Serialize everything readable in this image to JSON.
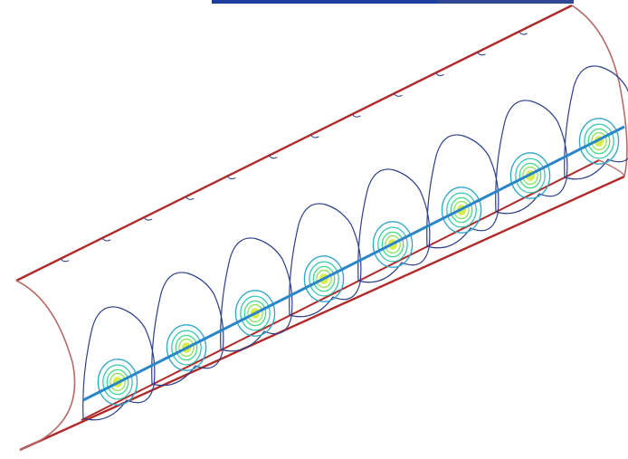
{
  "figure": {
    "cylinder_color": "#b02a2a",
    "edge_color": "#b86a6a",
    "contour_color": "#2c3f8a",
    "inner_colors": [
      "#2fa7c9",
      "#35c7b0",
      "#44d98a",
      "#8fe35a",
      "#d6ee4a"
    ],
    "axis_color": "#2a86c8",
    "cell_count": 8
  }
}
